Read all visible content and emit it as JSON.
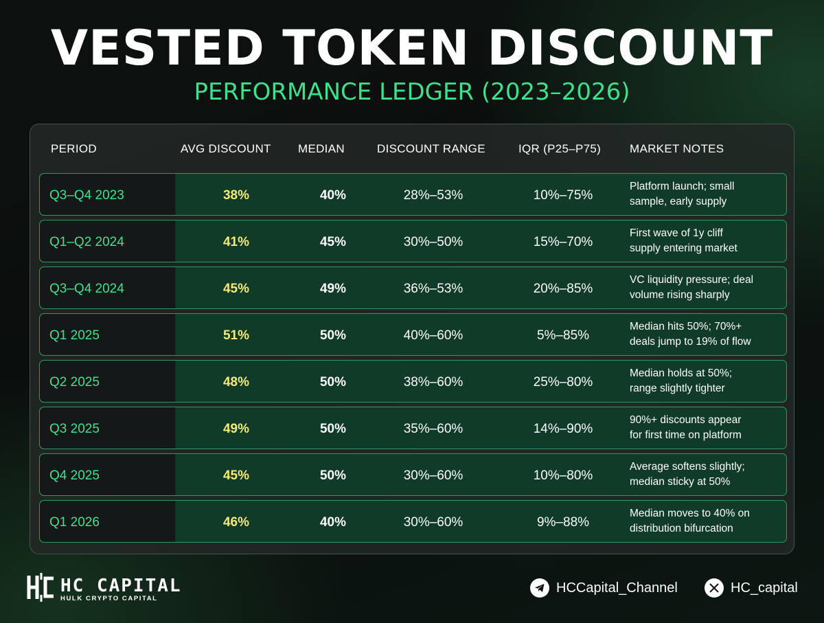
{
  "title": "VESTED TOKEN DISCOUNT",
  "subtitle": "PERFORMANCE LEDGER (2023–2026)",
  "chart_data": {
    "type": "table",
    "columns": [
      "PERIOD",
      "AVG DISCOUNT",
      "MEDIAN",
      "DISCOUNT RANGE",
      "IQR (P25–P75)",
      "MARKET NOTES"
    ],
    "rows": [
      {
        "period": "Q3–Q4 2023",
        "avg": "38%",
        "median": "40%",
        "range": "28%–53%",
        "iqr": "10%–75%",
        "notes": [
          "Platform launch; small",
          "sample, early supply"
        ]
      },
      {
        "period": "Q1–Q2 2024",
        "avg": "41%",
        "median": "45%",
        "range": "30%–50%",
        "iqr": "15%–70%",
        "notes": [
          "First wave of 1y cliff",
          "supply entering market"
        ]
      },
      {
        "period": "Q3–Q4 2024",
        "avg": "45%",
        "median": "49%",
        "range": "36%–53%",
        "iqr": "20%–85%",
        "notes": [
          "VC liquidity pressure; deal",
          "volume rising sharply"
        ]
      },
      {
        "period": "Q1 2025",
        "avg": "51%",
        "median": "50%",
        "range": "40%–60%",
        "iqr": "5%–85%",
        "notes": [
          "Median hits 50%; 70%+",
          "deals jump to 19% of flow"
        ]
      },
      {
        "period": "Q2 2025",
        "avg": "48%",
        "median": "50%",
        "range": "38%–60%",
        "iqr": "25%–80%",
        "notes": [
          "Median holds at 50%;",
          "range slightly tighter"
        ]
      },
      {
        "period": "Q3 2025",
        "avg": "49%",
        "median": "50%",
        "range": "35%–60%",
        "iqr": "14%–90%",
        "notes": [
          "90%+ discounts appear",
          "for first time on platform"
        ]
      },
      {
        "period": "Q4 2025",
        "avg": "45%",
        "median": "50%",
        "range": "30%–60%",
        "iqr": "10%–80%",
        "notes": [
          "Average softens slightly;",
          "median sticky at 50%"
        ]
      },
      {
        "period": "Q1 2026",
        "avg": "46%",
        "median": "40%",
        "range": "30%–60%",
        "iqr": "9%–88%",
        "notes": [
          "Median moves to 40% on",
          "distribution bifurcation"
        ]
      }
    ]
  },
  "footer": {
    "brand": "HC CAPITAL",
    "brand_sub": "HULK CRYPTO CAPITAL",
    "telegram": "HCCapital_Channel",
    "twitter": "HC_capital",
    "telegram_icon": "telegram-icon",
    "twitter_icon": "x-icon"
  },
  "colors": {
    "accent_green": "#45e08f",
    "avg_yellow": "#f3ea7a",
    "row_bg": "#103b28",
    "period_bg": "#151818"
  }
}
